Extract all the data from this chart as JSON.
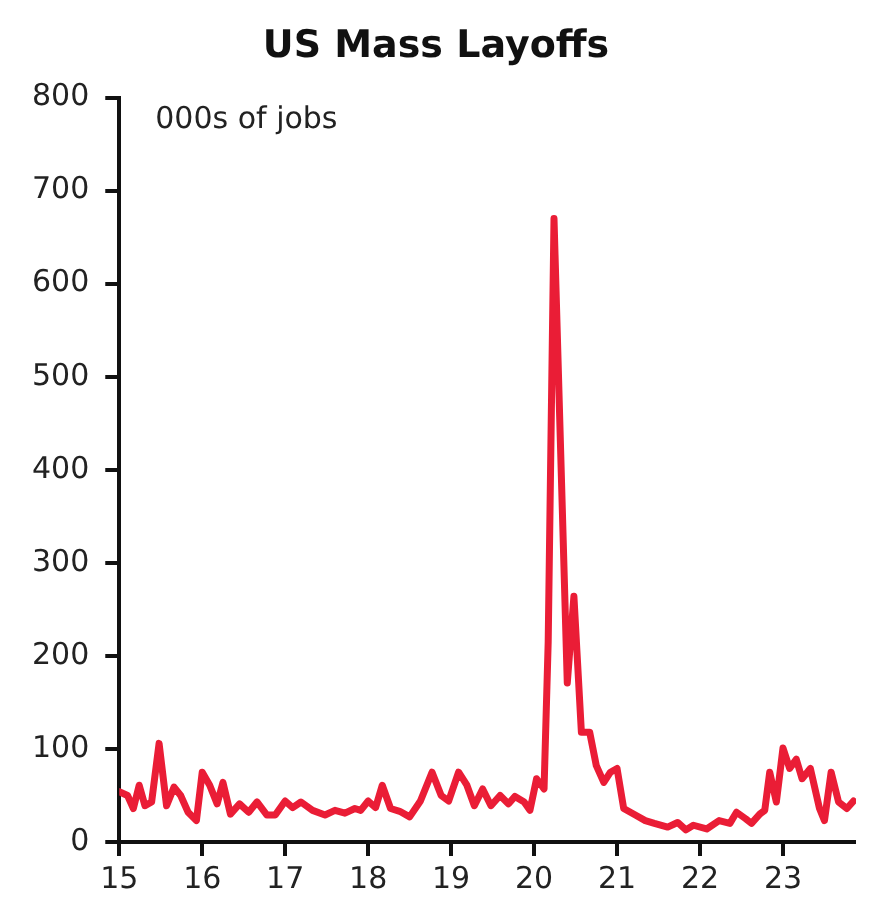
{
  "chart_data": {
    "type": "line",
    "title": "US Mass Layoffs",
    "annotations": [
      "000s of jobs"
    ],
    "x": [
      2015.0,
      2015.1,
      2015.17,
      2015.24,
      2015.31,
      2015.39,
      2015.48,
      2015.57,
      2015.66,
      2015.74,
      2015.83,
      2015.93,
      2016.0,
      2016.09,
      2016.18,
      2016.25,
      2016.34,
      2016.45,
      2016.56,
      2016.66,
      2016.78,
      2016.88,
      2017.0,
      2017.09,
      2017.19,
      2017.33,
      2017.48,
      2017.6,
      2017.72,
      2017.84,
      2017.91,
      2018.0,
      2018.09,
      2018.17,
      2018.27,
      2018.38,
      2018.5,
      2018.63,
      2018.77,
      2018.88,
      2018.97,
      2019.09,
      2019.19,
      2019.28,
      2019.38,
      2019.48,
      2019.59,
      2019.69,
      2019.77,
      2019.88,
      2019.95,
      2020.03,
      2020.12,
      2020.17,
      2020.24,
      2020.4,
      2020.48,
      2020.57,
      2020.67,
      2020.75,
      2020.84,
      2020.92,
      2021.0,
      2021.08,
      2021.22,
      2021.34,
      2021.45,
      2021.61,
      2021.73,
      2021.83,
      2021.92,
      2022.08,
      2022.23,
      2022.36,
      2022.44,
      2022.55,
      2022.62,
      2022.72,
      2022.78,
      2022.84,
      2022.92,
      2023.0,
      2023.08,
      2023.16,
      2023.23,
      2023.33,
      2023.44,
      2023.5,
      2023.58,
      2023.67,
      2023.77,
      2023.85
    ],
    "series": [
      {
        "color": "#ea1d36",
        "values": [
          54,
          50,
          36,
          61,
          39,
          43,
          106,
          39,
          59,
          50,
          32,
          23,
          75,
          61,
          41,
          64,
          30,
          41,
          32,
          43,
          29,
          29,
          44,
          37,
          43,
          34,
          29,
          34,
          31,
          36,
          34,
          44,
          37,
          61,
          36,
          33,
          27,
          44,
          75,
          50,
          44,
          75,
          61,
          39,
          57,
          39,
          50,
          41,
          49,
          43,
          34,
          68,
          57,
          215,
          670,
          171,
          264,
          118,
          118,
          82,
          64,
          75,
          79,
          36,
          29,
          23,
          20,
          16,
          21,
          13,
          18,
          14,
          23,
          20,
          32,
          25,
          20,
          30,
          34,
          75,
          43,
          101,
          79,
          89,
          68,
          79,
          36,
          23,
          75,
          43,
          36,
          44
        ]
      }
    ],
    "xlim": [
      2015,
      2023.88
    ],
    "xticks": [
      {
        "value": 2015,
        "label": "15"
      },
      {
        "value": 2016,
        "label": "16"
      },
      {
        "value": 2017,
        "label": "17"
      },
      {
        "value": 2018,
        "label": "18"
      },
      {
        "value": 2019,
        "label": "19"
      },
      {
        "value": 2020,
        "label": "20"
      },
      {
        "value": 2021,
        "label": "21"
      },
      {
        "value": 2022,
        "label": "22"
      },
      {
        "value": 2023,
        "label": "23"
      }
    ],
    "ylim": [
      0,
      800
    ],
    "yticks": [
      0,
      100,
      200,
      300,
      400,
      500,
      600,
      700,
      800
    ],
    "grid": false,
    "legend": false,
    "marker": "none",
    "line_style": "solid"
  }
}
